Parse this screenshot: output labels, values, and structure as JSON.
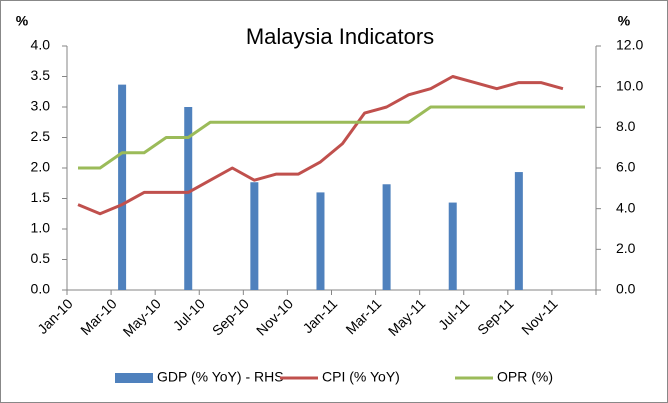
{
  "chart_data": {
    "type": "bar_line",
    "title": "Malaysia Indicators",
    "y_unit_label": "%",
    "y2_unit_label": "%",
    "categories": [
      "Jan-10",
      null,
      "Mar-10",
      null,
      "May-10",
      null,
      "Jul-10",
      null,
      "Sep-10",
      null,
      "Nov-10",
      null,
      "Jan-11",
      null,
      "Mar-11",
      null,
      "May-11",
      null,
      "Jul-11",
      null,
      "Sep-11",
      null,
      "Nov-11",
      null
    ],
    "series": [
      {
        "name": "GDP (% YoY) - RHS",
        "type": "bar",
        "axis": "y2",
        "color": "#4f81bd",
        "values": [
          null,
          null,
          10.1,
          null,
          null,
          9.0,
          null,
          null,
          5.3,
          null,
          null,
          4.8,
          null,
          null,
          5.2,
          null,
          null,
          4.3,
          null,
          null,
          5.8,
          null,
          null,
          null
        ]
      },
      {
        "name": "CPI (% YoY)",
        "type": "line",
        "color": "#c0504d",
        "values": [
          1.4,
          1.25,
          1.4,
          1.6,
          1.6,
          1.6,
          1.8,
          2.0,
          1.8,
          1.9,
          1.9,
          2.1,
          2.4,
          2.9,
          3.0,
          3.2,
          3.3,
          3.5,
          3.4,
          3.3,
          3.4,
          3.4,
          3.3,
          null
        ]
      },
      {
        "name": "OPR (%)",
        "type": "line",
        "color": "#9bbb59",
        "values": [
          2.0,
          2.0,
          2.25,
          2.25,
          2.5,
          2.5,
          2.75,
          2.75,
          2.75,
          2.75,
          2.75,
          2.75,
          2.75,
          2.75,
          2.75,
          2.75,
          3.0,
          3.0,
          3.0,
          3.0,
          3.0,
          3.0,
          3.0,
          3.0
        ]
      }
    ],
    "ylim": [
      0,
      4
    ],
    "yticks": [
      {
        "value": 0,
        "label": "0.0"
      },
      0.5,
      {
        "value": 1,
        "label": "1.0"
      },
      1.5,
      {
        "value": 2,
        "label": "2.0"
      },
      2.5,
      {
        "value": 3,
        "label": "3.0"
      },
      3.5,
      {
        "value": 4,
        "label": "4.0"
      }
    ],
    "y2lim": [
      0,
      12
    ],
    "y2ticks": [
      {
        "value": 0,
        "label": "0.0"
      },
      {
        "value": 2,
        "label": "2.0"
      },
      {
        "value": 4,
        "label": "4.0"
      },
      {
        "value": 6,
        "label": "6.0"
      },
      {
        "value": 8,
        "label": "8.0"
      },
      {
        "value": 10,
        "label": "10.0"
      },
      {
        "value": 12,
        "label": "12.0"
      }
    ],
    "grid": false,
    "legend": "bottom"
  }
}
